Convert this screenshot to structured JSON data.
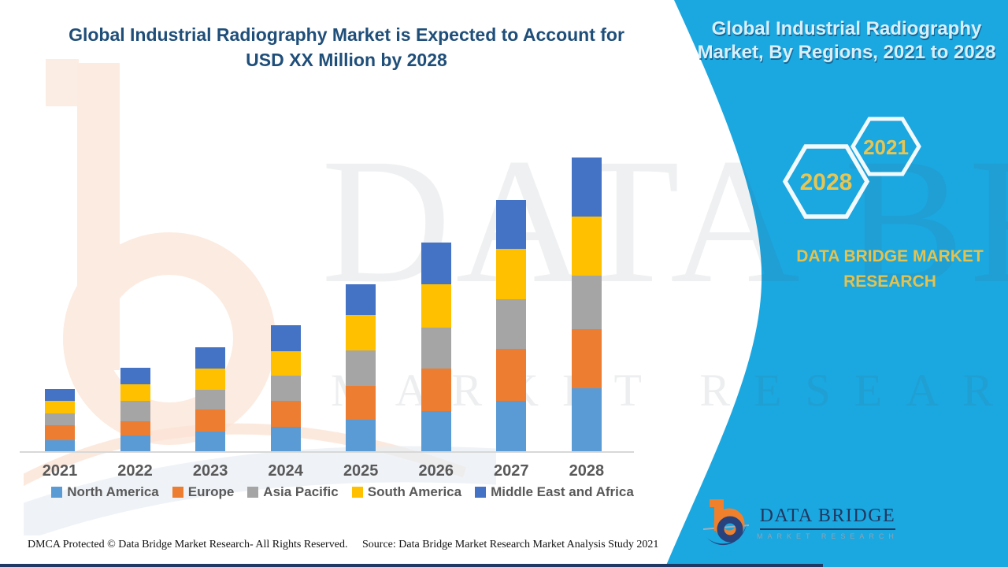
{
  "header": {
    "title": "Global Industrial Radiography Market is Expected to Account for USD XX Million by 2028"
  },
  "side_panel": {
    "heading": "Global Industrial Radiography Market, By Regions, 2021 to 2028",
    "hexagons": [
      {
        "label": "2028"
      },
      {
        "label": "2021"
      }
    ],
    "brand": "DATA BRIDGE MARKET RESEARCH",
    "panel_color": "#1BA7E0",
    "brand_color": "#E3C24F"
  },
  "chart_data": {
    "type": "bar",
    "stacked": true,
    "title": "Global Industrial Radiography Market is Expected to Account for USD XX Million by 2028",
    "xlabel": "",
    "ylabel": "",
    "value_axis_visible": false,
    "units_note": "values are illustrative (chart labels values as USD XX Million); series values below are relative heights estimated from pixels",
    "ylim": [
      0,
      400
    ],
    "legend_position": "bottom",
    "categories": [
      "2021",
      "2022",
      "2023",
      "2024",
      "2025",
      "2026",
      "2027",
      "2028"
    ],
    "series": [
      {
        "name": "North America",
        "color": "#5B9BD5",
        "values": [
          16,
          22,
          27,
          33,
          42,
          53,
          66,
          82
        ]
      },
      {
        "name": "Europe",
        "color": "#ED7D31",
        "values": [
          19,
          18,
          28,
          33,
          43,
          54,
          66,
          75
        ]
      },
      {
        "name": "Asia Pacific",
        "color": "#A5A5A5",
        "values": [
          15,
          26,
          25,
          32,
          45,
          52,
          63,
          68
        ]
      },
      {
        "name": "South America",
        "color": "#FFC000",
        "values": [
          16,
          21,
          27,
          31,
          45,
          55,
          64,
          75
        ]
      },
      {
        "name": "Middle East and Africa",
        "color": "#4472C4",
        "values": [
          15,
          21,
          27,
          33,
          39,
          53,
          62,
          75
        ]
      }
    ]
  },
  "watermark": {
    "line1": "DATA BRIDGE",
    "line2": "MARKET RESEARCH"
  },
  "footer": {
    "dmca": "DMCA Protected © Data Bridge Market Research- All Rights Reserved.",
    "source": "Source: Data Bridge Market Research Market Analysis Study 2021"
  },
  "logo": {
    "title": "DATA BRIDGE",
    "subtitle": "MARKET RESEARCH"
  }
}
